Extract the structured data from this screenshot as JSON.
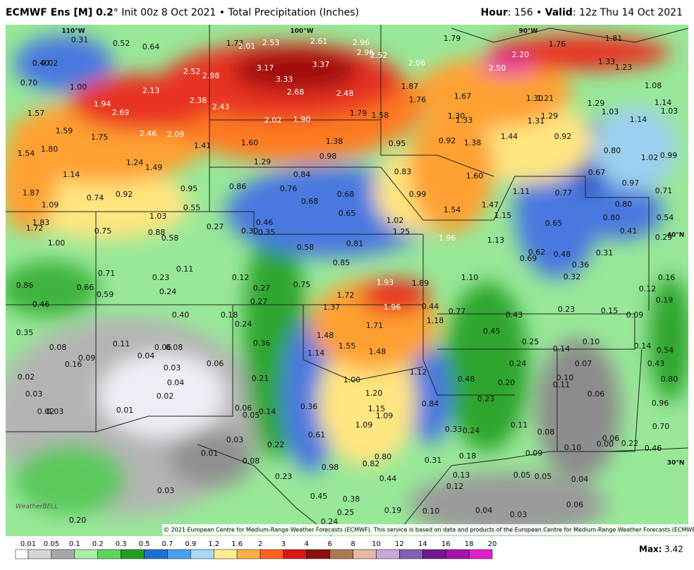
{
  "header": {
    "model": "ECMWF Ens [M] 0.2",
    "run": "° Init 00z 8 Oct 2021 • Total Precipitation (Inches)",
    "hour_label": "Hour",
    "hour_value": ": 156 • ",
    "valid_label": "Valid",
    "valid_value": ": 12z Thu 14 Oct 2021"
  },
  "map": {
    "graticule": [
      "110°W",
      "100°W",
      "90°W",
      "40°N",
      "30°N"
    ],
    "values": [
      "0.31",
      "0.52",
      "0.64",
      "1.73",
      "2.01",
      "2.53",
      "2.61",
      "2.96",
      "1.79",
      "1.81",
      "1.76",
      "2.96",
      "2.52",
      "2.20",
      "0.40",
      "0.02",
      "1.33",
      "1.23",
      "2.06",
      "2.50",
      "3.17",
      "3.37",
      "2.52",
      "2.98",
      "3.33",
      "0.70",
      "1.00",
      "2.13",
      "2.68",
      "2.48",
      "1.87",
      "1.76",
      "1.67",
      "1.30",
      "1.21",
      "1.29",
      "1.08",
      "1.14",
      "1.03",
      "1.03",
      "1.94",
      "2.38",
      "2.43",
      "1.57",
      "2.69",
      "1.79",
      "1.58",
      "1.30",
      "1.33",
      "1.31",
      "1.29",
      "1.14",
      "2.02",
      "1.90",
      "1.59",
      "2.46",
      "2.09",
      "1.75",
      "1.44",
      "0.92",
      "1.38",
      "1.60",
      "1.41",
      "0.95",
      "0.92",
      "1.38",
      "1.80",
      "1.54",
      "0.80",
      "1.02",
      "0.99",
      "0.98",
      "1.24",
      "1.49",
      "1.29",
      "0.84",
      "0.83",
      "1.60",
      "0.67",
      "1.14",
      "0.97",
      "0.86",
      "0.76",
      "0.68",
      "0.95",
      "0.92",
      "0.74",
      "1.87",
      "0.99",
      "1.11",
      "0.77",
      "0.71",
      "0.68",
      "1.47",
      "0.80",
      "1.09",
      "0.55",
      "1.54",
      "0.65",
      "1.03",
      "1.15",
      "0.80",
      "0.54",
      "1.02",
      "0.65",
      "1.83",
      "0.27",
      "0.46",
      "1.72",
      "0.75",
      "0.88",
      "0.30",
      "0.35",
      "1.25",
      "0.41",
      "0.58",
      "1.96",
      "1.13",
      "0.29",
      "1.00",
      "0.81",
      "0.58",
      "0.62",
      "0.48",
      "0.31",
      "0.69",
      "0.85",
      "0.36",
      "0.11",
      "0.71",
      "0.12",
      "0.23",
      "1.10",
      "0.32",
      "0.16",
      "0.86",
      "0.66",
      "0.75",
      "1.93",
      "1.89",
      "0.27",
      "0.24",
      "0.12",
      "0.59",
      "1.72",
      "0.19",
      "0.46",
      "0.27",
      "1.37",
      "1.96",
      "0.44",
      "0.77",
      "0.23",
      "0.15",
      "0.18",
      "0.40",
      "0.43",
      "0.09",
      "1.18",
      "0.24",
      "1.71",
      "0.45",
      "0.35",
      "1.48",
      "0.11",
      "0.08",
      "1.55",
      "0.36",
      "0.25",
      "0.10",
      "0.06",
      "0.08",
      "0.14",
      "0.14",
      "0.54",
      "1.48",
      "1.14",
      "0.04",
      "0.09",
      "0.16",
      "0.06",
      "0.07",
      "0.24",
      "0.43",
      "0.03",
      "1.12",
      "0.02",
      "0.21",
      "0.48",
      "1.00",
      "0.04",
      "0.10",
      "0.11",
      "0.20",
      "0.80",
      "0.03",
      "0.02",
      "1.20",
      "0.06",
      "0.23",
      "0.84",
      "0.96",
      "0.01",
      "0.02",
      "0.03",
      "0.06",
      "0.14",
      "1.15",
      "0.36",
      "0.05",
      "1.09",
      "1.09",
      "0.11",
      "0.33",
      "0.24",
      "0.70",
      "0.08",
      "0.61",
      "0.03",
      "0.22",
      "0.06",
      "0.00",
      "0.22",
      "0.10",
      "0.46",
      "0.01",
      "0.09",
      "0.18",
      "0.80",
      "0.08",
      "0.31",
      "0.82",
      "0.98",
      "0.05",
      "0.05",
      "0.13",
      "0.23",
      "0.04",
      "0.44",
      "0.12",
      "0.03",
      "0.45",
      "0.38",
      "0.06",
      "0.19",
      "0.10",
      "0.04",
      "0.25",
      "0.03",
      "0.20",
      "0.24"
    ]
  },
  "colorbar": {
    "labels": [
      "0.01",
      "0.05",
      "0.1",
      "0.2",
      "0.3",
      "0.5",
      "0.7",
      "0.9",
      "1.2",
      "1.6",
      "2",
      "3",
      "4",
      "6",
      "8",
      "10",
      "12",
      "14",
      "16",
      "18",
      "20"
    ],
    "colors": [
      "#ffffff",
      "#d6d6d6",
      "#a8a8a8",
      "#a6f0a6",
      "#5cd65c",
      "#22a022",
      "#1e6fd0",
      "#4aa0f0",
      "#a8d8f8",
      "#ffee90",
      "#ffb040",
      "#ff6020",
      "#d81818",
      "#8a1010",
      "#b07850",
      "#e8b8a0",
      "#c8a8d8",
      "#8060b0",
      "#701890",
      "#a810b0",
      "#e020d0"
    ]
  },
  "footer": {
    "credit": "© 2021 European Centre for Medium-Range Weather Forecasts (ECMWF). This service is based on data and products of the European Centre for Medium-Range Weather Forecasts (ECMWF).",
    "max_label": "Max:",
    "max_value": "3.42",
    "logo": "WeatherBELL"
  }
}
